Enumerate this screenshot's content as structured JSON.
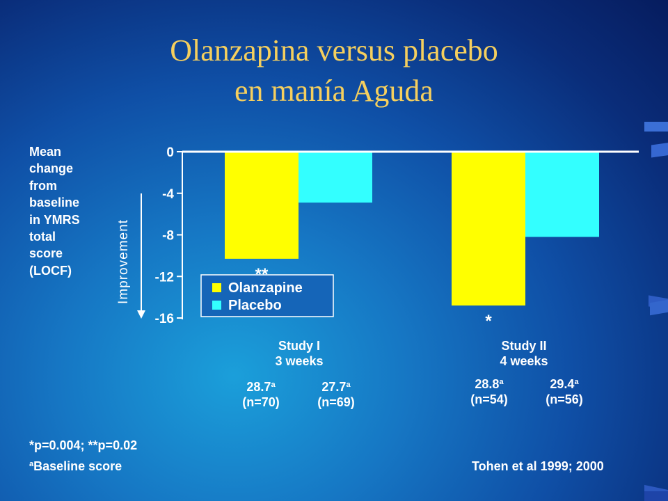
{
  "title": {
    "line1": "Olanzapina versus placebo",
    "line2": "en manía Aguda"
  },
  "y_description": "Mean\nchange\nfrom\nbaseline\nin YMRS\ntotal\nscore\n(LOCF)",
  "colors": {
    "olanzapine": "#ffff00",
    "placebo": "#33ffff",
    "title": "#f5cf5e"
  },
  "chart_data": {
    "type": "bar",
    "categories": [
      "Study I 3 weeks",
      "Study II 4 weeks"
    ],
    "series": [
      {
        "name": "Olanzapine",
        "values": [
          -10.3,
          -14.8
        ]
      },
      {
        "name": "Placebo",
        "values": [
          -4.9,
          -8.2
        ]
      }
    ],
    "ylim": [
      -16,
      0
    ],
    "yticks": [
      "0",
      "-4",
      "-8",
      "-12",
      "-16"
    ],
    "ylabel": "Improvement",
    "legend_position": "bottom-left",
    "annotations": [
      {
        "category": "Study I 3 weeks",
        "series": "Olanzapine",
        "text": "**"
      },
      {
        "category": "Study II 4 weeks",
        "series": "Olanzapine",
        "text": "*"
      }
    ]
  },
  "studies": [
    {
      "name": "Study I",
      "duration": "3 weeks",
      "baselines": [
        {
          "score": "28.7",
          "sup": "a",
          "n": "(n=70)"
        },
        {
          "score": "27.7",
          "sup": "a",
          "n": "(n=69)"
        }
      ]
    },
    {
      "name": "Study II",
      "duration": "4 weeks",
      "baselines": [
        {
          "score": "28.8",
          "sup": "a",
          "n": "(n=54)"
        },
        {
          "score": "29.4",
          "sup": "a",
          "n": "(n=56)"
        }
      ]
    }
  ],
  "footnotes": {
    "pvalues": "*p=0.004; **p=0.02",
    "baseline_sup": "a",
    "baseline": "Baseline score",
    "citation": "Tohen et al 1999; 2000"
  }
}
